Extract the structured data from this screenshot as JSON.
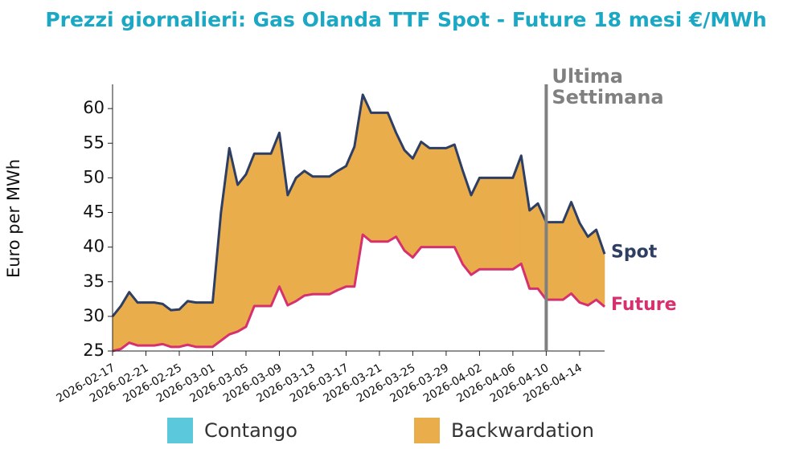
{
  "chart_data": {
    "type": "line",
    "title": "Prezzi giornalieri: Gas Olanda TTF Spot - Future 18 mesi €/MWh",
    "y_label": "Euro per MWh",
    "x": [
      "2026-02-17",
      "2026-02-18",
      "2026-02-19",
      "2026-02-20",
      "2026-02-21",
      "2026-02-22",
      "2026-02-23",
      "2026-02-24",
      "2026-02-25",
      "2026-02-26",
      "2026-02-27",
      "2026-02-28",
      "2026-03-01",
      "2026-03-02",
      "2026-03-03",
      "2026-03-04",
      "2026-03-05",
      "2026-03-06",
      "2026-03-07",
      "2026-03-08",
      "2026-03-09",
      "2026-03-10",
      "2026-03-11",
      "2026-03-12",
      "2026-03-13",
      "2026-03-14",
      "2026-03-15",
      "2026-03-16",
      "2026-03-17",
      "2026-03-18",
      "2026-03-19",
      "2026-03-20",
      "2026-03-21",
      "2026-03-22",
      "2026-03-23",
      "2026-03-24",
      "2026-03-25",
      "2026-03-26",
      "2026-03-27",
      "2026-03-28",
      "2026-03-29",
      "2026-03-30",
      "2026-03-31",
      "2026-04-01",
      "2026-04-02",
      "2026-04-03",
      "2026-04-04",
      "2026-04-05",
      "2026-04-06",
      "2026-04-07",
      "2026-04-08",
      "2026-04-09",
      "2026-04-10",
      "2026-04-11",
      "2026-04-12",
      "2026-04-13",
      "2026-04-14",
      "2026-04-15",
      "2026-04-16",
      "2026-04-17"
    ],
    "series": [
      {
        "name": "Spot",
        "color": "#2e3f63",
        "values": [
          30,
          31.5,
          33.5,
          32,
          32,
          32,
          31.8,
          30.9,
          31,
          32.2,
          32,
          32,
          32,
          45,
          54.3,
          49,
          50.5,
          53.5,
          53.5,
          53.5,
          56.5,
          47.5,
          50,
          51,
          50.2,
          50.2,
          50.2,
          51,
          51.7,
          54.5,
          62,
          59.4,
          59.4,
          59.4,
          56.5,
          54,
          52.8,
          55.2,
          54.3,
          54.3,
          54.3,
          54.8,
          51,
          47.5,
          50,
          50,
          50,
          50,
          50,
          53.2,
          45.3,
          46.3,
          43.6,
          43.6,
          43.6,
          46.5,
          43.5,
          41.5,
          42.5,
          39
        ]
      },
      {
        "name": "Future",
        "color": "#d6306f",
        "values": [
          25,
          25.3,
          26.2,
          25.8,
          25.8,
          25.8,
          26,
          25.6,
          25.6,
          25.9,
          25.6,
          25.6,
          25.6,
          26.5,
          27.4,
          27.8,
          28.5,
          31.5,
          31.5,
          31.5,
          34.3,
          31.6,
          32.2,
          33,
          33.2,
          33.2,
          33.2,
          33.8,
          34.3,
          34.3,
          41.8,
          40.8,
          40.8,
          40.8,
          41.5,
          39.5,
          38.5,
          40,
          40,
          40,
          40,
          40,
          37.5,
          36,
          36.8,
          36.8,
          36.8,
          36.8,
          36.8,
          37.6,
          34,
          34,
          32.4,
          32.4,
          32.4,
          33.3,
          32,
          31.6,
          32.4,
          31.4
        ]
      }
    ],
    "legend": [
      {
        "name": "Contango",
        "color": "#5bc8dc"
      },
      {
        "name": "Backwardation",
        "color": "#eaad4c"
      }
    ],
    "annotation": {
      "x": "2026-04-10",
      "lines": [
        "Ultima",
        "Settimana"
      ],
      "color": "#808080"
    },
    "xlim": [
      "2026-02-17",
      "2026-04-17"
    ],
    "xticks": [
      "2026-02-17",
      "2026-02-21",
      "2026-02-25",
      "2026-03-01",
      "2026-03-05",
      "2026-03-09",
      "2026-03-13",
      "2026-03-17",
      "2026-03-21",
      "2026-03-25",
      "2026-03-29",
      "2026-04-02",
      "2026-04-06",
      "2026-04-10",
      "2026-04-14"
    ],
    "ylim": [
      25,
      63.5
    ],
    "yticks": [
      25,
      30,
      35,
      40,
      45,
      50,
      55,
      60
    ],
    "grid": false
  }
}
